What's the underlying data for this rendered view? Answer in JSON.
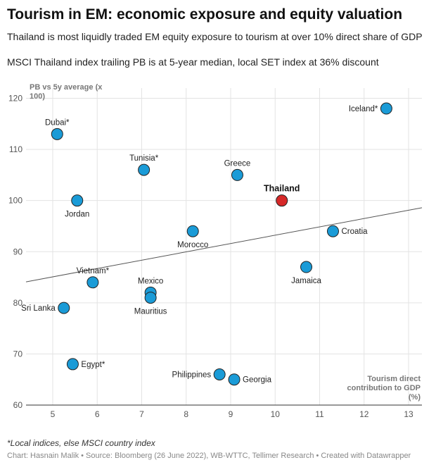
{
  "title": "Tourism in EM: economic exposure and equity valuation",
  "subtitle1": "Thailand is most liquidly traded EM equity exposure to tourism at over 10% direct share of GDP",
  "subtitle2": "MSCI Thailand index trailing PB is at 5-year median, local SET index at 36% discount",
  "note": "*Local indices, else MSCI country index",
  "footer": "Chart: Hasnain Malik • Source: Bloomberg (26 June 2022), WB-WTTC, Tellimer Research • Created with Datawrapper",
  "chart_data": {
    "type": "scatter",
    "ylabel": "PB vs 5y average (x 100)",
    "ylabel_lines": [
      "PB vs 5y average (x",
      "100)"
    ],
    "xlabel": "Tourism direct contribution to GDP (%)",
    "xlabel_lines": [
      "Tourism direct",
      "contribution to GDP",
      "(%)"
    ],
    "xlim": [
      4.4,
      13.3
    ],
    "ylim": [
      60,
      122
    ],
    "xticks": [
      5,
      6,
      7,
      8,
      9,
      10,
      11,
      12,
      13
    ],
    "yticks": [
      60,
      70,
      80,
      90,
      100,
      110,
      120
    ],
    "grid": true,
    "colors": {
      "point": "#1a9bd7",
      "highlight": "#d62828",
      "trendline": "#555555",
      "grid": "#e3e3e3"
    },
    "trendline": {
      "x": [
        4.4,
        13.3
      ],
      "y": [
        84.1,
        98.6
      ]
    },
    "points": [
      {
        "label": "Dubai*",
        "x": 5.1,
        "y": 113,
        "pos": "above"
      },
      {
        "label": "Iceland*",
        "x": 12.5,
        "y": 118,
        "pos": "left"
      },
      {
        "label": "Tunisia*",
        "x": 7.05,
        "y": 106,
        "pos": "above"
      },
      {
        "label": "Greece",
        "x": 9.15,
        "y": 105,
        "pos": "above"
      },
      {
        "label": "Jordan",
        "x": 5.55,
        "y": 100,
        "pos": "below"
      },
      {
        "label": "Thailand",
        "x": 10.15,
        "y": 100,
        "pos": "above",
        "highlight": true
      },
      {
        "label": "Morocco",
        "x": 8.15,
        "y": 94,
        "pos": "below"
      },
      {
        "label": "Croatia",
        "x": 11.3,
        "y": 94,
        "pos": "right"
      },
      {
        "label": "Jamaica",
        "x": 10.7,
        "y": 87,
        "pos": "below"
      },
      {
        "label": "Vietnam*",
        "x": 5.9,
        "y": 84,
        "pos": "above"
      },
      {
        "label": "Mexico",
        "x": 7.2,
        "y": 82,
        "pos": "above"
      },
      {
        "label": "Mauritius",
        "x": 7.2,
        "y": 81,
        "pos": "below"
      },
      {
        "label": "Sri Lanka",
        "x": 5.25,
        "y": 79,
        "pos": "left"
      },
      {
        "label": "Egypt*",
        "x": 5.45,
        "y": 68,
        "pos": "right"
      },
      {
        "label": "Philippines",
        "x": 8.75,
        "y": 66,
        "pos": "left"
      },
      {
        "label": "Georgia",
        "x": 9.08,
        "y": 65,
        "pos": "right"
      }
    ]
  }
}
